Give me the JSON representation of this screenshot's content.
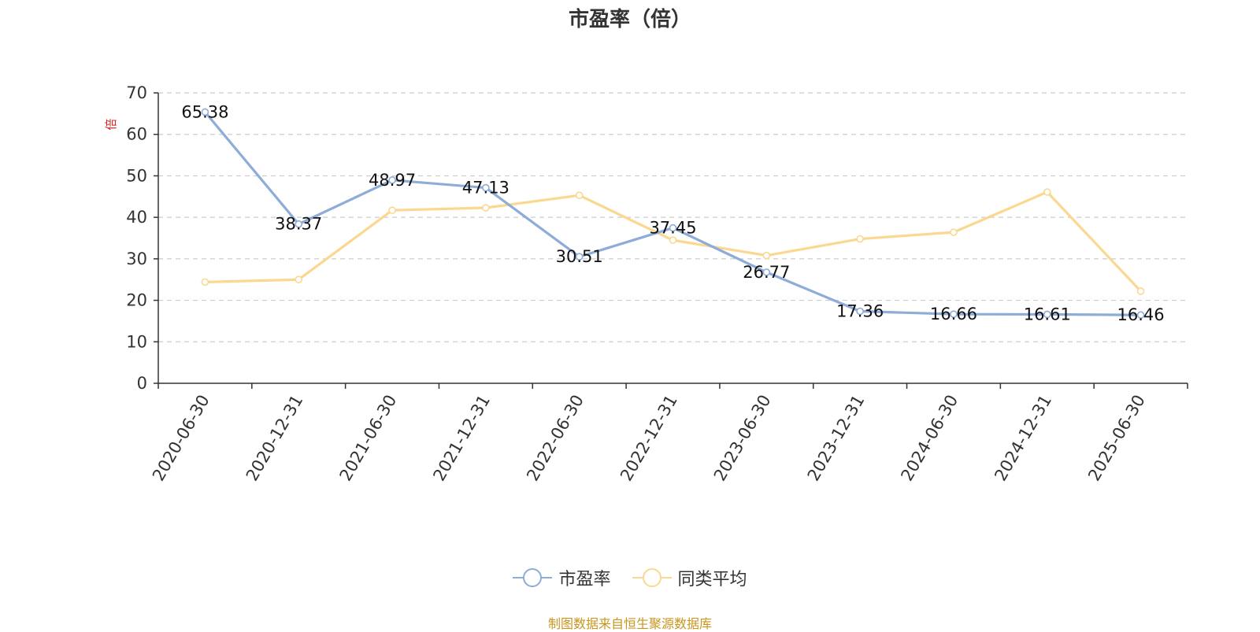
{
  "chart_data": {
    "type": "line",
    "title": "市盈率（倍）",
    "ylabel": "倍",
    "ylim": [
      0,
      70
    ],
    "yticks": [
      0,
      10,
      20,
      30,
      40,
      50,
      60,
      70
    ],
    "grid": true,
    "legend_position": "bottom",
    "categories": [
      "2020-06-30",
      "2020-12-31",
      "2021-06-30",
      "2021-12-31",
      "2022-06-30",
      "2022-12-31",
      "2023-06-30",
      "2023-12-31",
      "2024-06-30",
      "2024-12-31",
      "2025-06-30"
    ],
    "series": [
      {
        "name": "市盈率",
        "color": "#8eacd8",
        "show_labels": true,
        "values": [
          65.38,
          38.37,
          48.97,
          47.13,
          30.51,
          37.45,
          26.77,
          17.36,
          16.66,
          16.61,
          16.46
        ]
      },
      {
        "name": "同类平均",
        "color": "#fbd891",
        "show_labels": false,
        "values": [
          24.4,
          25.0,
          41.7,
          42.3,
          45.3,
          34.5,
          30.8,
          34.8,
          36.4,
          46.1,
          22.2
        ]
      }
    ]
  },
  "footer": {
    "source_note": "制图数据来自恒生聚源数据库"
  }
}
